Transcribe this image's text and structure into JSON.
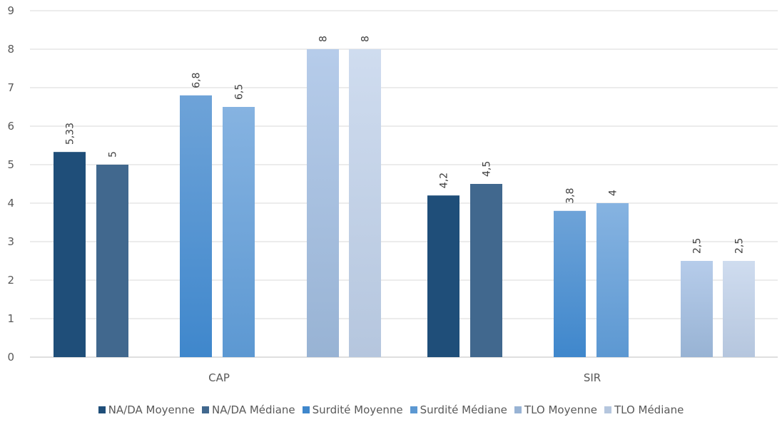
{
  "chart_data": {
    "type": "bar",
    "categories": [
      "CAP",
      "SIR"
    ],
    "ylim": [
      0,
      9
    ],
    "yticks": [
      0,
      1,
      2,
      3,
      4,
      5,
      6,
      7,
      8,
      9
    ],
    "grid": true,
    "legend_position": "bottom",
    "series": [
      {
        "name": "NA/DA Moyenne",
        "values": [
          5.33,
          4.2
        ],
        "labels": [
          "5,33",
          "4,2"
        ],
        "color": "#1f4e79",
        "color2": "#1f4e79"
      },
      {
        "name": "NA/DA Médiane",
        "values": [
          5,
          4.5
        ],
        "labels": [
          "5",
          "4,5"
        ],
        "color": "#41688e",
        "color2": "#41688e"
      },
      {
        "name": "Surdité Moyenne",
        "values": [
          6.8,
          3.8
        ],
        "labels": [
          "6,8",
          "3,8"
        ],
        "color": "#6ea3d8",
        "color2": "#3f87cc"
      },
      {
        "name": "Surdité Médiane",
        "values": [
          6.5,
          4
        ],
        "labels": [
          "6,5",
          "4"
        ],
        "color": "#86b3e1",
        "color2": "#5c98d2"
      },
      {
        "name": "TLO Moyenne",
        "values": [
          8,
          2.5
        ],
        "labels": [
          "8",
          "2,5"
        ],
        "color": "#b6ccea",
        "color2": "#98b3d4"
      },
      {
        "name": "TLO Médiane",
        "values": [
          8,
          2.5
        ],
        "labels": [
          "8",
          "2,5"
        ],
        "color": "#cfdcef",
        "color2": "#b5c6de"
      }
    ]
  }
}
